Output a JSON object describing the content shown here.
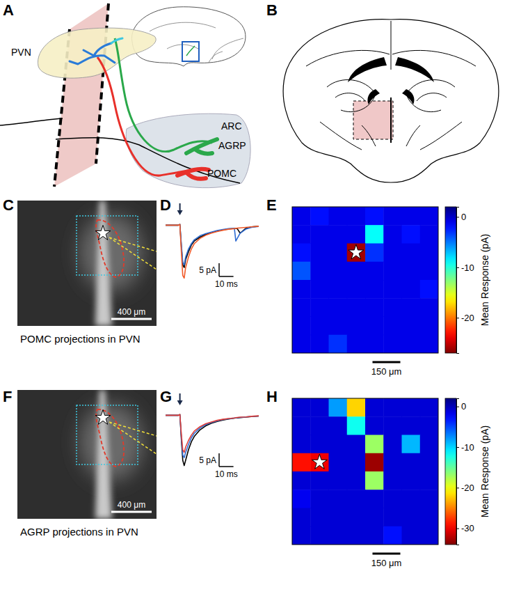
{
  "panel_labels": [
    "A",
    "B",
    "C",
    "D",
    "E",
    "F",
    "G",
    "H"
  ],
  "schematic": {
    "labels": {
      "pvn": "PVN",
      "arc": "ARC",
      "agrp": "AGRP",
      "pomc": "POMC"
    }
  },
  "micrographs": [
    {
      "caption": "POMC projections in PVN",
      "scale_bar": "400 μm"
    },
    {
      "caption": "AGRP projections in PVN",
      "scale_bar": "400 μm"
    }
  ],
  "chart_data": [
    {
      "type": "line",
      "x": [
        0,
        5,
        9,
        10,
        11,
        12,
        13,
        14,
        16,
        18,
        20,
        24,
        28,
        32,
        36,
        40,
        44,
        48,
        49,
        50,
        52,
        56,
        60,
        65
      ],
      "xlim": [
        0,
        65
      ],
      "ylim": [
        -22,
        3
      ],
      "tick_labels": false,
      "series": [
        {
          "color": "#000000",
          "values": [
            0,
            0,
            0,
            0.3,
            -8,
            -15,
            -16,
            -13,
            -10,
            -7.5,
            -6,
            -4.5,
            -3.5,
            -2.8,
            -2.2,
            -1.8,
            -1.4,
            -1.2,
            -1.2,
            -1.3,
            -3,
            -1.2,
            -0.6,
            -0.4
          ]
        },
        {
          "color": "#2e6bd1",
          "values": [
            0,
            0,
            0,
            0.3,
            -7,
            -14,
            -15,
            -12,
            -9,
            -7,
            -5.5,
            -4,
            -3.2,
            -2.6,
            -2,
            -1.6,
            -1.3,
            -1.2,
            -6,
            -5,
            -3,
            -1.5,
            -0.8,
            -0.5
          ]
        },
        {
          "color": "#f15a29",
          "values": [
            0,
            0,
            0,
            0.3,
            -10,
            -19,
            -20,
            -16,
            -12,
            -9,
            -7,
            -5,
            -3.8,
            -3,
            -2.4,
            -1.9,
            -1.5,
            -1.3,
            -1.2,
            -1.1,
            -1,
            -0.8,
            -0.6,
            -0.4
          ]
        }
      ],
      "annotations": [
        {
          "x": 10,
          "marker": "arrow"
        }
      ],
      "scale_bars": {
        "x": {
          "value": 10,
          "label": "10 ms"
        },
        "y": {
          "value": 5,
          "label": "5 pA"
        }
      }
    },
    {
      "type": "heatmap",
      "cells": [
        [
          -1,
          -2,
          -1,
          -1,
          -2,
          -1,
          -1,
          -1
        ],
        [
          -1,
          -1,
          -1,
          -1,
          -9,
          -1,
          -2,
          -1
        ],
        [
          -2,
          -1,
          -1,
          -26,
          -3,
          -1,
          -1,
          -1
        ],
        [
          -4,
          -1,
          -1,
          -1,
          -1,
          -1,
          -1,
          -1
        ],
        [
          -1,
          -1,
          -1,
          -1,
          -1,
          -1,
          -1,
          -2
        ],
        [
          -1,
          -1,
          -1,
          -1,
          -1,
          -1,
          -1,
          -1
        ],
        [
          -1,
          -1,
          -1,
          -1,
          -1,
          -1,
          -1,
          -1
        ],
        [
          -1,
          -1,
          -3,
          -1,
          -1,
          -1,
          -1,
          -1
        ]
      ],
      "clim": [
        -27,
        2
      ],
      "cticks": [
        0,
        -10,
        -20
      ],
      "colorbar_label": "Mean Response (pA)",
      "tick_labels": false,
      "annotations": [
        {
          "marker": "star",
          "row": 2,
          "col": 3
        }
      ],
      "scale_bar": "150 μm"
    },
    {
      "type": "line",
      "x": [
        0,
        5,
        9,
        10,
        11,
        12,
        13,
        14,
        16,
        18,
        20,
        24,
        28,
        32,
        36,
        40,
        44,
        48,
        49,
        50,
        52,
        56,
        60,
        65
      ],
      "xlim": [
        0,
        65
      ],
      "ylim": [
        -22,
        3
      ],
      "tick_labels": false,
      "series": [
        {
          "color": "#000000",
          "values": [
            0,
            0,
            0,
            0.3,
            -9,
            -17,
            -19,
            -17,
            -13,
            -10,
            -8,
            -5.5,
            -4,
            -3,
            -2.3,
            -1.8,
            -1.4,
            -1.1,
            -1,
            -1,
            -0.9,
            -0.7,
            -0.5,
            -0.3
          ]
        },
        {
          "color": "#2e6bd1",
          "values": [
            0,
            0,
            0,
            0.2,
            -8,
            -15,
            -16,
            -14,
            -11,
            -8.5,
            -6.8,
            -4.8,
            -3.5,
            -2.7,
            -2.1,
            -1.6,
            -1.3,
            -1,
            -1,
            -0.9,
            -0.8,
            -0.6,
            -0.4,
            -0.3
          ]
        },
        {
          "color": "#e0403a",
          "values": [
            0,
            0,
            0,
            0.3,
            -7,
            -13,
            -14,
            -12,
            -9.5,
            -7.5,
            -6,
            -4.3,
            -3.2,
            -2.5,
            -1.9,
            -1.5,
            -1.2,
            -1,
            -0.9,
            -0.8,
            -0.7,
            -0.6,
            -0.4,
            -0.2
          ]
        }
      ],
      "annotations": [
        {
          "x": 10,
          "marker": "arrow"
        }
      ],
      "scale_bars": {
        "x": {
          "value": 10,
          "label": "10 ms"
        },
        "y": {
          "value": 5,
          "label": "5 pA"
        }
      }
    },
    {
      "type": "heatmap",
      "cells": [
        [
          -1,
          -1,
          -8,
          -22,
          -1,
          -1,
          -1,
          -1
        ],
        [
          -1,
          -1,
          -1,
          -12,
          -1,
          -1,
          -1,
          -1
        ],
        [
          -1,
          -1,
          -1,
          -1,
          -17,
          -1,
          -9,
          -1
        ],
        [
          -29,
          -30,
          -1,
          -1,
          -33,
          -1,
          -1,
          -1
        ],
        [
          -1,
          -1,
          -1,
          -1,
          -17,
          -1,
          -1,
          -1
        ],
        [
          -2,
          -1,
          -1,
          -1,
          -1,
          -1,
          -1,
          -1
        ],
        [
          -1,
          -1,
          -1,
          -1,
          -1,
          -1,
          -1,
          -1
        ],
        [
          -1,
          -1,
          -1,
          -1,
          -1,
          -3,
          -1,
          -1
        ]
      ],
      "clim": [
        -34,
        2
      ],
      "cticks": [
        0,
        -10,
        -20,
        -30
      ],
      "colorbar_label": "Mean Response (pA)",
      "tick_labels": false,
      "annotations": [
        {
          "marker": "star",
          "row": 3,
          "col": 1
        }
      ],
      "scale_bar": "150 μm"
    }
  ]
}
